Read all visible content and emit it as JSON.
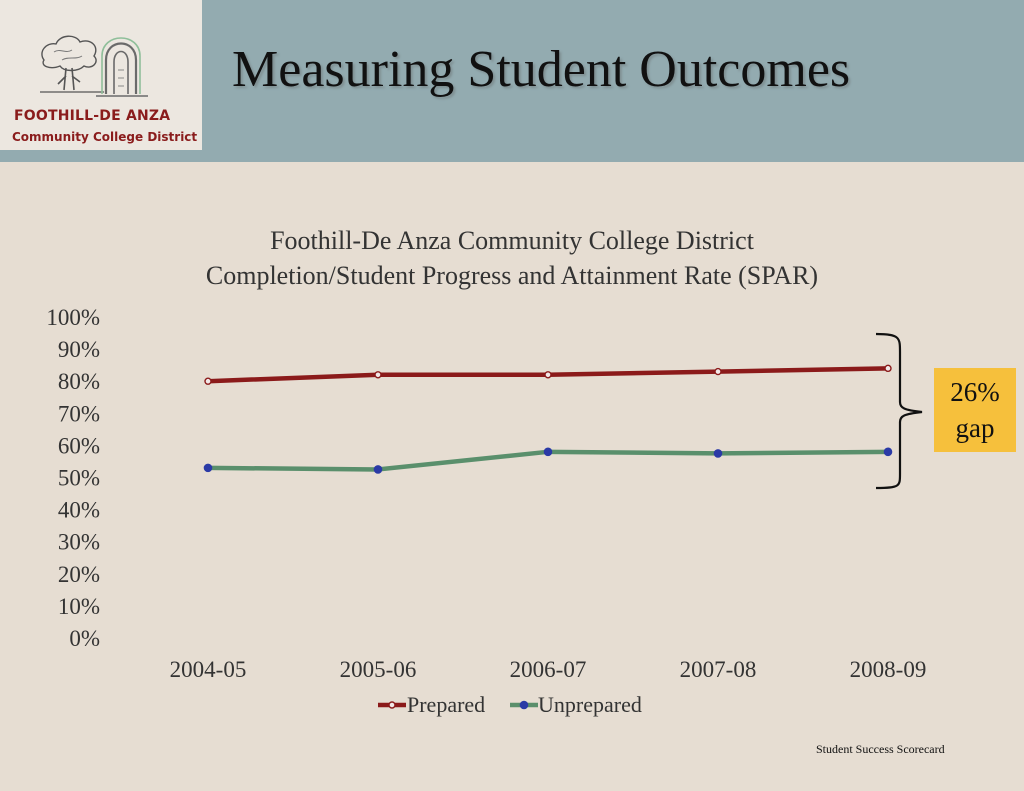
{
  "slide": {
    "title": "Measuring Student Outcomes",
    "footnote": "Student Success Scorecard"
  },
  "logo": {
    "line1": "FOOTHILL-DE ANZA",
    "line2": "Community College District"
  },
  "callout": {
    "line1": "26%",
    "line2": "gap"
  },
  "colors": {
    "header_band": "#93abb0",
    "background": "#e6ddd2",
    "prepared": "#8b1a1a",
    "unprepared": "#5a8f6c",
    "unprepared_marker": "#2b3aa6",
    "callout": "#f6c03c"
  },
  "chart_data": {
    "type": "line",
    "title": "Foothill-De Anza Community College District",
    "subtitle": "Completion/Student Progress and Attainment Rate (SPAR)",
    "categories": [
      "2004-05",
      "2005-06",
      "2006-07",
      "2007-08",
      "2008-09"
    ],
    "series": [
      {
        "name": "Prepared",
        "values": [
          80,
          82,
          82,
          83,
          84
        ]
      },
      {
        "name": "Unprepared",
        "values": [
          53,
          52.5,
          58,
          57.5,
          58
        ]
      }
    ],
    "ylim": [
      0,
      100
    ],
    "yticks": [
      "0%",
      "10%",
      "20%",
      "30%",
      "40%",
      "50%",
      "60%",
      "70%",
      "80%",
      "90%",
      "100%"
    ],
    "grid": false,
    "legend": "bottom"
  }
}
